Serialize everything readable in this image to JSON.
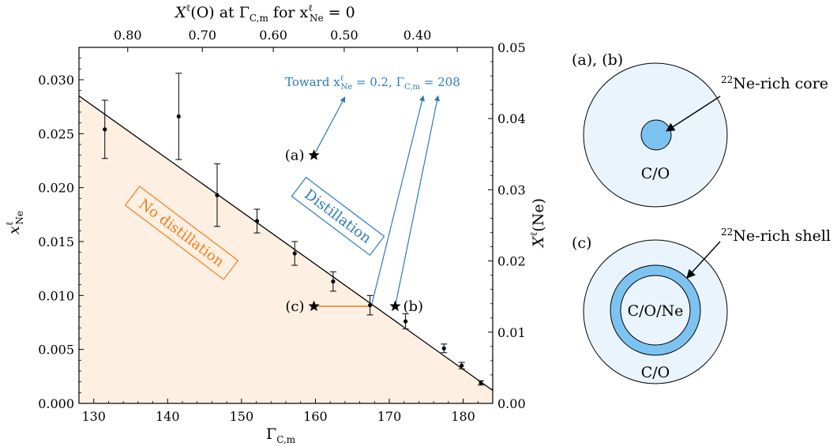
{
  "chart_data": {
    "type": "scatter",
    "xlabel_bottom": "Γ",
    "xlabel_bottom_sub": "C,m",
    "ylabel_left": "x",
    "ylabel_left_sup": "ℓ",
    "ylabel_left_sub": "Ne",
    "ylabel_right": "X",
    "ylabel_right_sup": "ℓ",
    "ylabel_right_paren": "(Ne)",
    "xlabel_top": "X",
    "xlabel_top_sup": "ℓ",
    "xlabel_top_mid": "(O) at Γ",
    "xlabel_top_mid_sub": "C,m",
    "xlabel_top_for": " for x",
    "xlabel_top_for_sup": "ℓ",
    "xlabel_top_for_sub": "Ne",
    "xlabel_top_end": " = 0",
    "xlim": [
      128,
      184
    ],
    "ylim": [
      0,
      0.033
    ],
    "ylim_right": [
      0,
      0.05
    ],
    "x_ticks": [
      130,
      140,
      150,
      160,
      170,
      180
    ],
    "x_tick_labels": [
      "130",
      "140",
      "150",
      "160",
      "170",
      "180"
    ],
    "y_ticks": [
      0,
      0.005,
      0.01,
      0.015,
      0.02,
      0.025,
      0.03
    ],
    "y_tick_labels": [
      "0.000",
      "0.005",
      "0.010",
      "0.015",
      "0.020",
      "0.025",
      "0.030"
    ],
    "y2_ticks": [
      0,
      0.01,
      0.02,
      0.03,
      0.04,
      0.05
    ],
    "y2_tick_labels": [
      "0.00",
      "0.01",
      "0.02",
      "0.03",
      "0.04",
      "0.05"
    ],
    "top_tick_gamma": [
      134.6,
      144.7,
      154.3,
      163.9,
      173.8,
      179.2
    ],
    "top_tick_labels": [
      "0.80",
      "0.70",
      "0.60",
      "0.50",
      "0.40"
    ],
    "top_ticks_with_labels": [
      134.6,
      144.7,
      154.3,
      163.9,
      173.8
    ],
    "top_minor_ticks": [
      179.2
    ],
    "boundary_line": {
      "x": [
        128,
        184
      ],
      "y": [
        0.0285,
        0.0012
      ]
    },
    "data_points": [
      {
        "x": 131.5,
        "y": 0.0254,
        "err_lo": 0.0027,
        "err_hi": 0.0027
      },
      {
        "x": 141.5,
        "y": 0.0266,
        "err_lo": 0.004,
        "err_hi": 0.004
      },
      {
        "x": 146.7,
        "y": 0.0193,
        "err_lo": 0.0029,
        "err_hi": 0.0029
      },
      {
        "x": 152.1,
        "y": 0.0169,
        "err_lo": 0.0011,
        "err_hi": 0.0011
      },
      {
        "x": 157.2,
        "y": 0.0139,
        "err_lo": 0.0011,
        "err_hi": 0.0011
      },
      {
        "x": 162.4,
        "y": 0.0113,
        "err_lo": 0.0009,
        "err_hi": 0.0009
      },
      {
        "x": 167.4,
        "y": 0.0091,
        "err_lo": 0.0009,
        "err_hi": 0.0009
      },
      {
        "x": 172.2,
        "y": 0.0076,
        "err_lo": 0.0007,
        "err_hi": 0.0007
      },
      {
        "x": 177.4,
        "y": 0.0051,
        "err_lo": 0.0004,
        "err_hi": 0.0004
      },
      {
        "x": 179.8,
        "y": 0.0035,
        "err_lo": 0.0003,
        "err_hi": 0.0003
      },
      {
        "x": 182.4,
        "y": 0.0019,
        "err_lo": 0.0002,
        "err_hi": 0.0002
      }
    ],
    "stars": [
      {
        "x": 159.8,
        "y": 0.023,
        "label": "(a)"
      },
      {
        "x": 170.8,
        "y": 0.009,
        "label": "(b)"
      },
      {
        "x": 159.8,
        "y": 0.009,
        "label": "(c)"
      }
    ],
    "orange_segment": {
      "x": [
        159.8,
        167.4
      ],
      "y": [
        0.009,
        0.009
      ]
    },
    "blue_arrows": [
      {
        "x1": 159.8,
        "y1": 0.023,
        "x2": 164.0,
        "y2": 0.0284
      },
      {
        "x1": 167.6,
        "y1": 0.0091,
        "x2": 174.6,
        "y2": 0.0285
      },
      {
        "x1": 170.8,
        "y1": 0.009,
        "x2": 176.6,
        "y2": 0.0285
      }
    ],
    "toward_label": "Toward x",
    "toward_sup": "ℓ",
    "toward_sub": "Ne",
    "toward_rest": " = 0.2, Γ",
    "toward_rest_sub": "C,m",
    "toward_end": " = 208",
    "region_no_distillation": "No distillation",
    "region_distillation": "Distillation",
    "colors": {
      "fill": "#fdf0e3",
      "orange": "#f07d1a",
      "blue": "#2b7bbd",
      "core": "#7cc3f2",
      "disk": "#eaf4fd"
    }
  },
  "diagrams": {
    "top_label": "(a), (b)",
    "top_annotation_sup": "22",
    "top_annotation": "Ne-rich core",
    "top_inner_label": "C/O",
    "bottom_label": "(c)",
    "bottom_annotation_sup": "22",
    "bottom_annotation": "Ne-rich shell",
    "bottom_inner_label": "C/O/Ne",
    "bottom_outer_label": "C/O"
  }
}
